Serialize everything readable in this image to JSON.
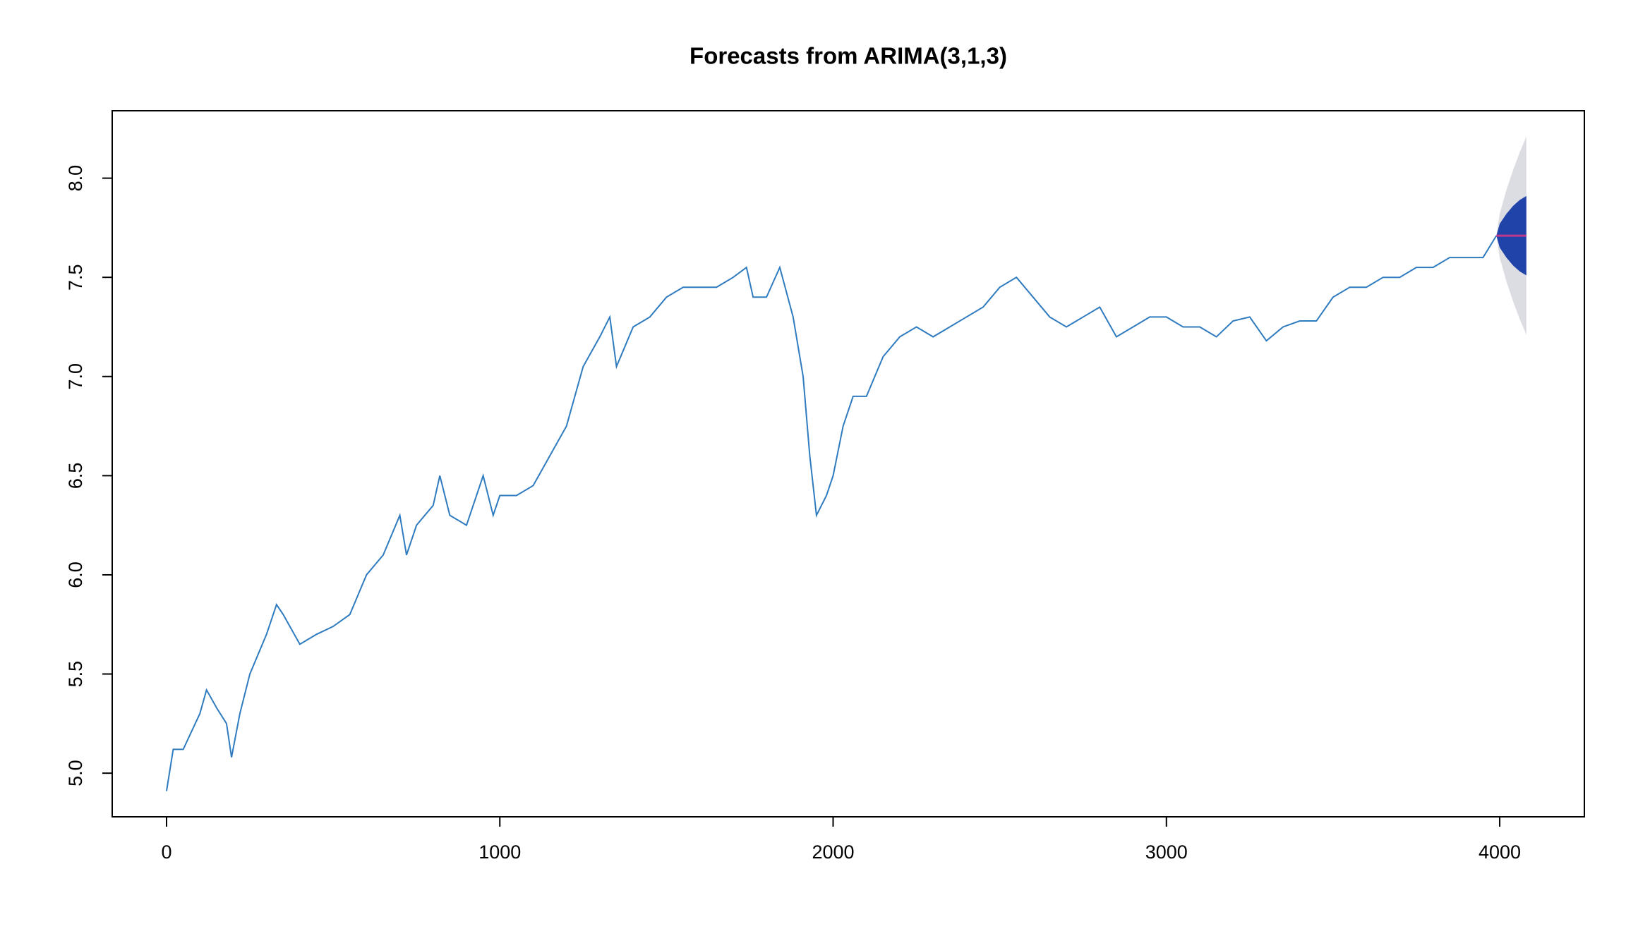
{
  "chart_data": {
    "type": "line",
    "title": "Forecasts from ARIMA(3,1,3)",
    "x": [
      0,
      20,
      50,
      100,
      120,
      150,
      180,
      195,
      220,
      250,
      300,
      330,
      350,
      400,
      450,
      500,
      550,
      600,
      650,
      700,
      720,
      750,
      800,
      820,
      850,
      900,
      950,
      980,
      1000,
      1050,
      1100,
      1150,
      1200,
      1250,
      1300,
      1330,
      1350,
      1400,
      1450,
      1500,
      1550,
      1600,
      1650,
      1700,
      1740,
      1760,
      1800,
      1840,
      1880,
      1910,
      1930,
      1950,
      1980,
      2000,
      2030,
      2060,
      2100,
      2150,
      2200,
      2250,
      2300,
      2350,
      2400,
      2450,
      2500,
      2550,
      2600,
      2650,
      2700,
      2750,
      2800,
      2850,
      2900,
      2950,
      3000,
      3050,
      3100,
      3150,
      3200,
      3250,
      3300,
      3350,
      3400,
      3450,
      3500,
      3550,
      3600,
      3650,
      3700,
      3750,
      3800,
      3850,
      3900,
      3950,
      3990
    ],
    "values": [
      4.91,
      5.12,
      5.12,
      5.3,
      5.42,
      5.33,
      5.25,
      5.08,
      5.3,
      5.5,
      5.7,
      5.85,
      5.8,
      5.65,
      5.7,
      5.74,
      5.8,
      6.0,
      6.1,
      6.3,
      6.1,
      6.25,
      6.35,
      6.5,
      6.3,
      6.25,
      6.5,
      6.3,
      6.4,
      6.4,
      6.45,
      6.6,
      6.75,
      7.05,
      7.2,
      7.3,
      7.05,
      7.25,
      7.3,
      7.4,
      7.45,
      7.45,
      7.45,
      7.5,
      7.55,
      7.4,
      7.4,
      7.55,
      7.3,
      7.0,
      6.6,
      6.3,
      6.4,
      6.5,
      6.75,
      6.9,
      6.9,
      7.1,
      7.2,
      7.25,
      7.2,
      7.25,
      7.3,
      7.35,
      7.45,
      7.5,
      7.4,
      7.3,
      7.25,
      7.3,
      7.35,
      7.2,
      7.25,
      7.3,
      7.3,
      7.25,
      7.25,
      7.2,
      7.28,
      7.3,
      7.18,
      7.25,
      7.28,
      7.28,
      7.4,
      7.45,
      7.45,
      7.5,
      7.5,
      7.55,
      7.55,
      7.6,
      7.6,
      7.6,
      7.71
    ],
    "color": "#2f7bbf",
    "forecast": {
      "x": [
        3990,
        4000,
        4020,
        4040,
        4060,
        4080
      ],
      "mean": [
        7.71,
        7.71,
        7.71,
        7.71,
        7.71,
        7.71
      ],
      "upper95": [
        7.71,
        7.82,
        7.94,
        8.04,
        8.13,
        8.21
      ],
      "lower95": [
        7.71,
        7.6,
        7.48,
        7.38,
        7.29,
        7.21
      ],
      "upper80": [
        7.71,
        7.77,
        7.82,
        7.86,
        7.89,
        7.91
      ],
      "lower80": [
        7.71,
        7.65,
        7.6,
        7.56,
        7.53,
        7.51
      ],
      "mean_color": "#c0398f",
      "color80": "#1f43a8",
      "color95": "#dcdce3"
    },
    "xlim": [
      -163,
      4254
    ],
    "ylim": [
      4.78,
      8.34
    ],
    "xticks": [
      0,
      1000,
      2000,
      3000,
      4000
    ],
    "yticks": [
      {
        "value": 5,
        "label": "5.0"
      },
      5.5,
      {
        "value": 6,
        "label": "6.0"
      },
      6.5,
      {
        "value": 7,
        "label": "7.0"
      },
      7.5,
      {
        "value": 8,
        "label": "8.0"
      }
    ]
  }
}
